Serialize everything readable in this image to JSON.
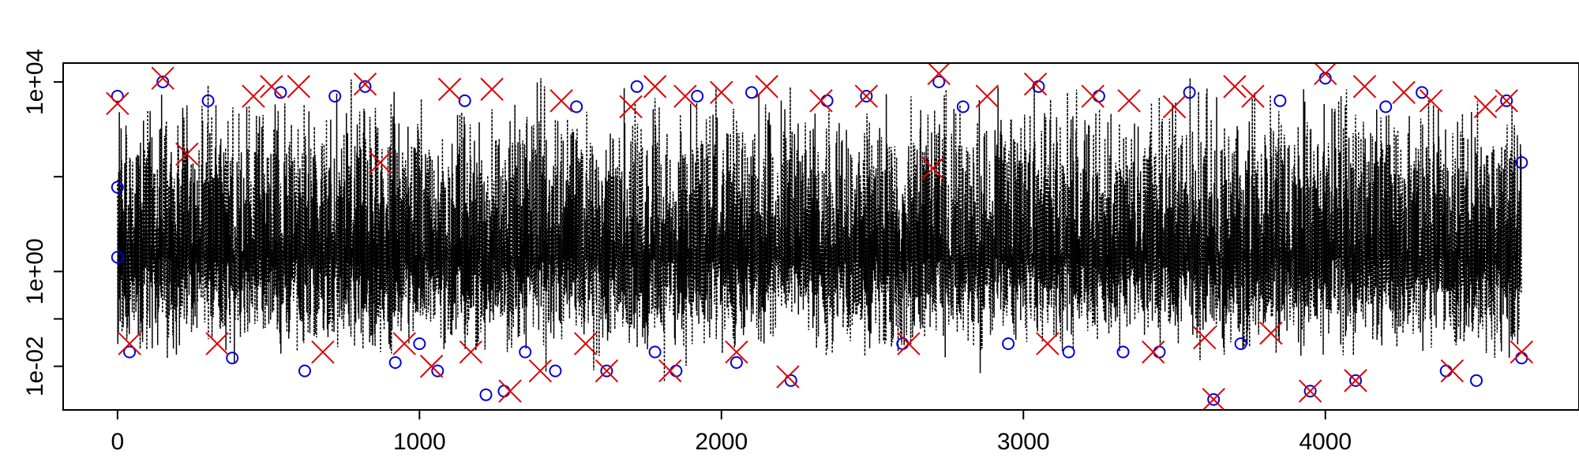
{
  "chart_data": {
    "type": "line",
    "title": "",
    "xlabel": "",
    "ylabel": "",
    "y_scale": "log",
    "xlim": [
      -180,
      4840
    ],
    "ylim": [
      0.0012,
      25000
    ],
    "x_ticks": [
      0,
      1000,
      2000,
      3000,
      4000
    ],
    "x_tick_labels": [
      "0",
      "1000",
      "2000",
      "3000",
      "4000"
    ],
    "y_ticks": [
      0.01,
      1,
      10000
    ],
    "y_minor_ticks": [
      0.1,
      100
    ],
    "y_tick_labels": [
      "1e-02",
      "1e+00",
      "1e+04"
    ],
    "n_points": 4650,
    "x_range": [
      0,
      4650
    ],
    "line_band": {
      "center": 2,
      "lower_typical": 0.03,
      "upper_typical": 3000
    },
    "grid": false,
    "legend": "none",
    "series": [
      {
        "role": "data line",
        "style": "dashed",
        "color": "#000000",
        "values_description": "dense oscillating series between about 0.003 and 10000"
      },
      {
        "role": "circle markers",
        "marker": "circle",
        "color": "#0000dd",
        "points": [
          [
            0,
            5000
          ],
          [
            0,
            60
          ],
          [
            0,
            2
          ],
          [
            40,
            0.02
          ],
          [
            150,
            10000
          ],
          [
            300,
            4000
          ],
          [
            380,
            0.015
          ],
          [
            540,
            6000
          ],
          [
            620,
            0.008
          ],
          [
            720,
            5000
          ],
          [
            820,
            8000
          ],
          [
            920,
            0.012
          ],
          [
            1000,
            0.03
          ],
          [
            1060,
            0.008
          ],
          [
            1150,
            4000
          ],
          [
            1220,
            0.0025
          ],
          [
            1280,
            0.003
          ],
          [
            1350,
            0.02
          ],
          [
            1450,
            0.008
          ],
          [
            1520,
            3000
          ],
          [
            1620,
            0.008
          ],
          [
            1720,
            8000
          ],
          [
            1780,
            0.02
          ],
          [
            1850,
            0.008
          ],
          [
            1920,
            5000
          ],
          [
            2050,
            0.012
          ],
          [
            2100,
            6000
          ],
          [
            2230,
            0.005
          ],
          [
            2350,
            4000
          ],
          [
            2480,
            5000
          ],
          [
            2600,
            0.03
          ],
          [
            2720,
            10000
          ],
          [
            2800,
            3000
          ],
          [
            2950,
            0.03
          ],
          [
            3050,
            8000
          ],
          [
            3150,
            0.02
          ],
          [
            3250,
            5000
          ],
          [
            3330,
            0.02
          ],
          [
            3450,
            0.02
          ],
          [
            3550,
            6000
          ],
          [
            3630,
            0.002
          ],
          [
            3720,
            0.03
          ],
          [
            3850,
            4000
          ],
          [
            3950,
            0.003
          ],
          [
            4000,
            12000
          ],
          [
            4100,
            0.005
          ],
          [
            4200,
            3000
          ],
          [
            4320,
            6000
          ],
          [
            4400,
            0.008
          ],
          [
            4500,
            0.005
          ],
          [
            4600,
            4000
          ],
          [
            4650,
            0.015
          ],
          [
            4650,
            200
          ]
        ]
      },
      {
        "role": "x markers",
        "marker": "x",
        "color": "#e00000",
        "points": [
          [
            0,
            3500
          ],
          [
            40,
            0.03
          ],
          [
            150,
            12000
          ],
          [
            230,
            300
          ],
          [
            330,
            0.03
          ],
          [
            450,
            5000
          ],
          [
            510,
            8000
          ],
          [
            600,
            8000
          ],
          [
            680,
            0.02
          ],
          [
            820,
            9000
          ],
          [
            870,
            200
          ],
          [
            950,
            0.03
          ],
          [
            1040,
            0.01
          ],
          [
            1100,
            7000
          ],
          [
            1170,
            0.02
          ],
          [
            1240,
            7000
          ],
          [
            1300,
            0.003
          ],
          [
            1400,
            0.008
          ],
          [
            1470,
            4000
          ],
          [
            1550,
            0.03
          ],
          [
            1620,
            0.008
          ],
          [
            1700,
            3000
          ],
          [
            1780,
            8000
          ],
          [
            1830,
            0.008
          ],
          [
            1880,
            5000
          ],
          [
            2000,
            6000
          ],
          [
            2050,
            0.02
          ],
          [
            2150,
            8000
          ],
          [
            2220,
            0.006
          ],
          [
            2330,
            4000
          ],
          [
            2480,
            5000
          ],
          [
            2620,
            0.03
          ],
          [
            2700,
            150
          ],
          [
            2720,
            15000
          ],
          [
            2880,
            5000
          ],
          [
            3040,
            9000
          ],
          [
            3080,
            0.03
          ],
          [
            3230,
            5000
          ],
          [
            3350,
            4000
          ],
          [
            3430,
            0.02
          ],
          [
            3500,
            3000
          ],
          [
            3600,
            0.04
          ],
          [
            3630,
            0.002
          ],
          [
            3700,
            8000
          ],
          [
            3760,
            5000
          ],
          [
            3820,
            0.05
          ],
          [
            3950,
            0.003
          ],
          [
            4000,
            15000
          ],
          [
            4100,
            0.005
          ],
          [
            4130,
            8000
          ],
          [
            4260,
            6000
          ],
          [
            4350,
            4000
          ],
          [
            4420,
            0.008
          ],
          [
            4530,
            3000
          ],
          [
            4600,
            4000
          ],
          [
            4650,
            0.02
          ]
        ]
      }
    ]
  }
}
